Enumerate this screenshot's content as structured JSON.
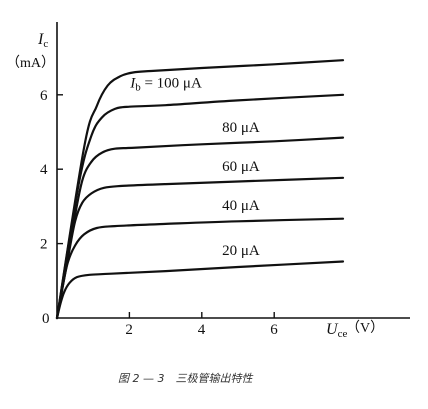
{
  "chart_data": {
    "type": "line",
    "x_axis": {
      "symbol": "U",
      "subscript": "ce",
      "unit": "（V）",
      "ticks": [
        "0",
        "2",
        "4",
        "6"
      ],
      "range": [
        0,
        8
      ]
    },
    "y_axis": {
      "symbol": "I",
      "subscript": "c",
      "unit": "（mA）",
      "ticks": [
        "2",
        "4",
        "6"
      ],
      "range": [
        0,
        7.5
      ]
    },
    "series": [
      {
        "label": "20 μA",
        "points": [
          [
            0,
            0
          ],
          [
            0.1,
            0.4
          ],
          [
            0.2,
            0.7
          ],
          [
            0.35,
            0.95
          ],
          [
            0.55,
            1.1
          ],
          [
            0.9,
            1.16
          ],
          [
            1.5,
            1.19
          ],
          [
            3,
            1.26
          ],
          [
            5,
            1.37
          ],
          [
            7.9,
            1.52
          ]
        ]
      },
      {
        "label": "40 μA",
        "points": [
          [
            0,
            0
          ],
          [
            0.15,
            0.8
          ],
          [
            0.3,
            1.5
          ],
          [
            0.5,
            1.95
          ],
          [
            0.75,
            2.25
          ],
          [
            1.1,
            2.42
          ],
          [
            1.6,
            2.47
          ],
          [
            3,
            2.53
          ],
          [
            5,
            2.6
          ],
          [
            7.9,
            2.67
          ]
        ]
      },
      {
        "label": "60 μA",
        "points": [
          [
            0,
            0
          ],
          [
            0.3,
            1.6
          ],
          [
            0.5,
            2.6
          ],
          [
            0.7,
            3.1
          ],
          [
            0.95,
            3.35
          ],
          [
            1.3,
            3.5
          ],
          [
            1.8,
            3.55
          ],
          [
            3,
            3.6
          ],
          [
            5,
            3.67
          ],
          [
            7.9,
            3.77
          ]
        ]
      },
      {
        "label": "80 μA",
        "points": [
          [
            0,
            0
          ],
          [
            0.45,
            2.5
          ],
          [
            0.7,
            3.7
          ],
          [
            0.95,
            4.2
          ],
          [
            1.25,
            4.45
          ],
          [
            1.6,
            4.55
          ],
          [
            2.2,
            4.58
          ],
          [
            4,
            4.67
          ],
          [
            6,
            4.75
          ],
          [
            7.9,
            4.85
          ]
        ]
      },
      {
        "label": "I_b = 100 μA",
        "label_parts": {
          "symbol": "I",
          "subscript": "b",
          "rest": " = 100 μA"
        },
        "points": [
          [
            0,
            0
          ],
          [
            0.6,
            3.6
          ],
          [
            0.95,
            4.9
          ],
          [
            1.25,
            5.4
          ],
          [
            1.6,
            5.62
          ],
          [
            2.0,
            5.68
          ],
          [
            3,
            5.72
          ],
          [
            5,
            5.85
          ],
          [
            7.9,
            6.0
          ]
        ]
      },
      {
        "label": "",
        "points": [
          [
            0,
            0
          ],
          [
            0.75,
            4.6
          ],
          [
            1.1,
            5.7
          ],
          [
            1.4,
            6.25
          ],
          [
            1.75,
            6.5
          ],
          [
            2.1,
            6.6
          ],
          [
            2.6,
            6.64
          ],
          [
            4,
            6.72
          ],
          [
            6,
            6.82
          ],
          [
            7.9,
            6.93
          ]
        ]
      }
    ]
  },
  "caption": "图 2 — 3　三极管输出特性"
}
